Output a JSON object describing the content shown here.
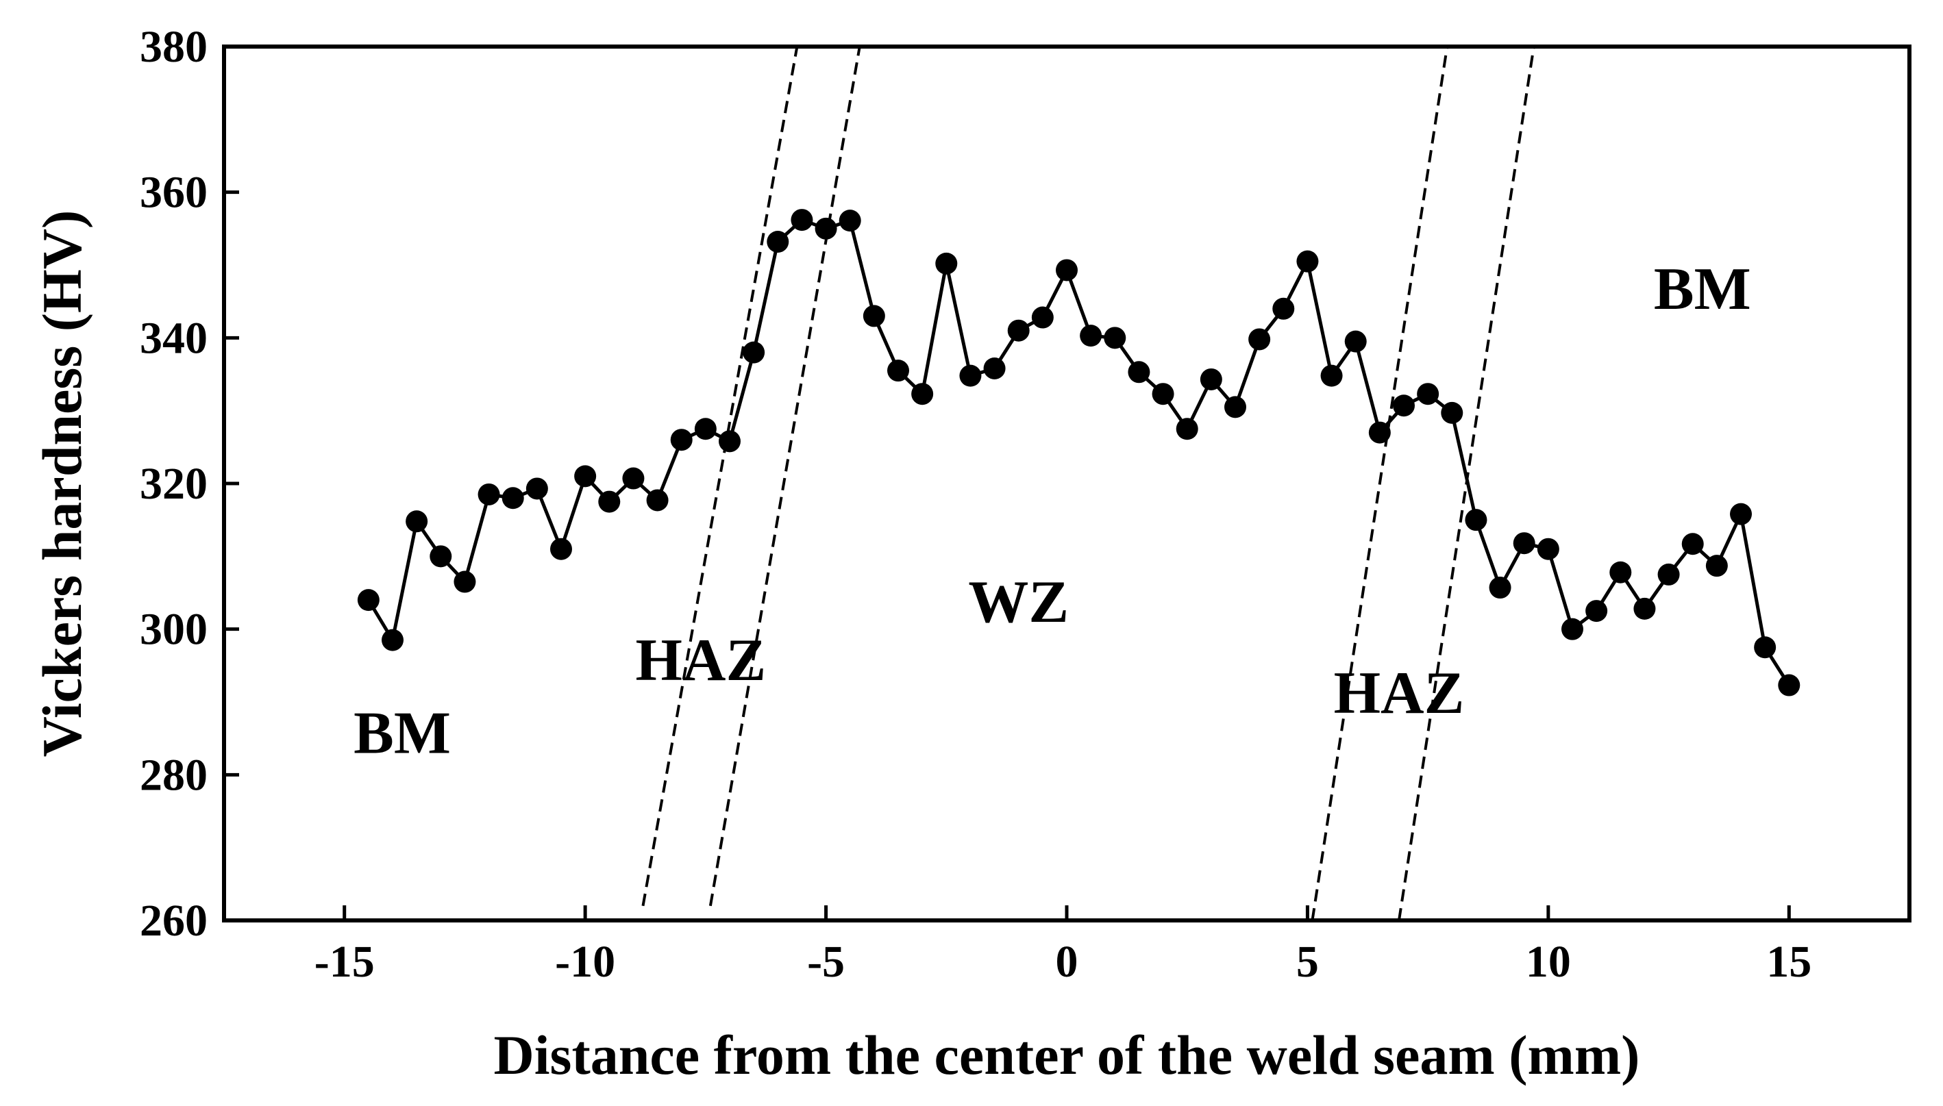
{
  "chart_data": {
    "type": "line",
    "title": "",
    "xlabel": "Distance from the center of the weld seam (mm)",
    "ylabel": "Vickers hardness (HV)",
    "xlim": [
      -17.5,
      17.5
    ],
    "ylim": [
      260,
      380
    ],
    "xticks": [
      -15,
      -10,
      -5,
      0,
      5,
      10,
      15
    ],
    "yticks": [
      260,
      280,
      300,
      320,
      340,
      360,
      380
    ],
    "xtick_labels": [
      "-15",
      "-10",
      "-5",
      "0",
      "5",
      "10",
      "15"
    ],
    "ytick_labels": [
      "260",
      "280",
      "300",
      "320",
      "340",
      "360",
      "380"
    ],
    "grid": false,
    "legend": "none",
    "series": [
      {
        "color": "#000000",
        "marker": "circle",
        "x": [
          -14.5,
          -14,
          -13.5,
          -13,
          -12.5,
          -12,
          -11.5,
          -11,
          -10.5,
          -10,
          -9.5,
          -9,
          -8.5,
          -8,
          -7.5,
          -7,
          -6.5,
          -6,
          -5.5,
          -5,
          -4.5,
          -4,
          -3.5,
          -3,
          -2.5,
          -2,
          -1.5,
          -1,
          -0.5,
          0,
          0.5,
          1,
          1.5,
          2,
          2.5,
          3,
          3.5,
          4,
          4.5,
          5,
          5.5,
          6,
          6.5,
          7,
          7.5,
          8,
          8.5,
          9,
          9.5,
          10,
          10.5,
          11,
          11.5,
          12,
          12.5,
          13,
          13.5,
          14,
          14.5,
          15
        ],
        "y": [
          304,
          298.5,
          314.8,
          310,
          306.5,
          318.5,
          318,
          319.3,
          311,
          321,
          317.5,
          320.7,
          317.7,
          326,
          327.5,
          325.8,
          338,
          353.2,
          356.2,
          355,
          356.1,
          343,
          335.5,
          332.3,
          350.2,
          334.8,
          335.8,
          341,
          342.8,
          349.3,
          340.3,
          340,
          335.3,
          332.3,
          327.5,
          334.3,
          330.5,
          339.8,
          344,
          350.5,
          334.8,
          339.5,
          327,
          330.7,
          332.3,
          329.7,
          315,
          305.7,
          311.8,
          311,
          300,
          302.5,
          307.8,
          302.8,
          307.5,
          311.7,
          308.7,
          315.8,
          297.5,
          292.3
        ]
      }
    ],
    "zone_lines": [
      {
        "x1": -8.8,
        "y1": 262,
        "x2": -5.6,
        "y2": 380
      },
      {
        "x1": -7.4,
        "y1": 262,
        "x2": -4.3,
        "y2": 380
      },
      {
        "x1": 5.1,
        "y1": 260,
        "x2": 7.9,
        "y2": 380
      },
      {
        "x1": 6.9,
        "y1": 260,
        "x2": 9.7,
        "y2": 380
      }
    ],
    "annotations": [
      {
        "text": "BM",
        "x": -13.8,
        "y": 283
      },
      {
        "text": "HAZ",
        "x": -7.6,
        "y": 293
      },
      {
        "text": "WZ",
        "x": -1.0,
        "y": 301
      },
      {
        "text": "HAZ",
        "x": 6.9,
        "y": 288.5
      },
      {
        "text": "BM",
        "x": 13.2,
        "y": 344
      }
    ]
  }
}
